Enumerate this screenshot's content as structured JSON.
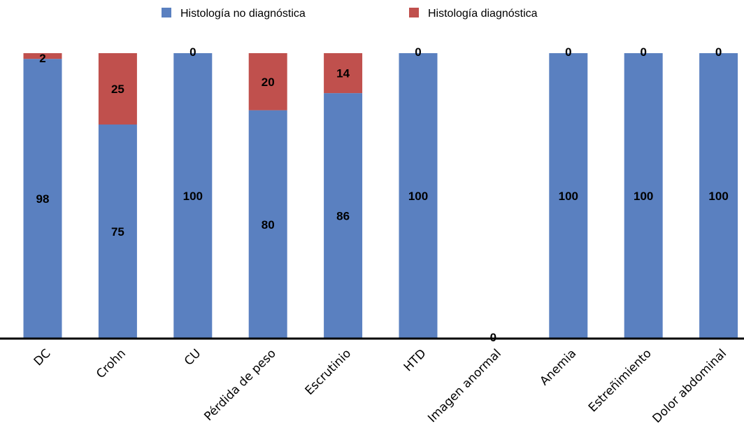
{
  "chart_data": {
    "type": "bar",
    "stacked": true,
    "categories": [
      "DC",
      "Crohn",
      "CU",
      "Pérdida de peso",
      "Escrutinio",
      "HTD",
      "Imagen anormal",
      "Anemia",
      "Estreñimiento",
      "Dolor abdominal"
    ],
    "series": [
      {
        "name": "Histología no diagnóstica",
        "color": "#5A80C0",
        "values": [
          98,
          75,
          100,
          80,
          86,
          100,
          0,
          100,
          100,
          100
        ]
      },
      {
        "name": "Histología diagnóstica",
        "color": "#C0504D",
        "values": [
          2,
          25,
          0,
          20,
          14,
          0,
          0,
          0,
          0,
          0
        ]
      }
    ],
    "ylim": [
      0,
      100
    ],
    "legend_position": "top",
    "grid": false
  }
}
